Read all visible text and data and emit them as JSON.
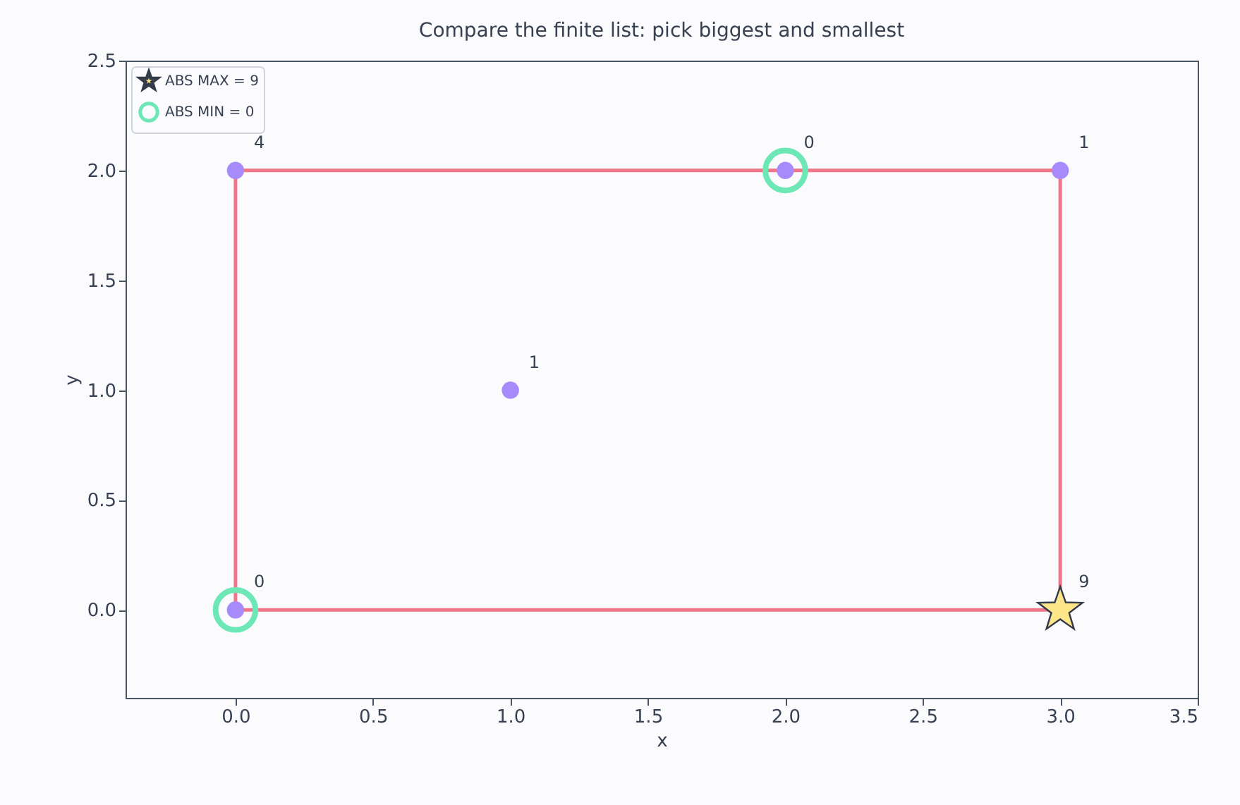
{
  "chart_data": {
    "type": "scatter",
    "title": "Compare the finite list: pick biggest and smallest",
    "xlabel": "x",
    "ylabel": "y",
    "xlim": [
      -0.4,
      3.5
    ],
    "xticks": [
      {
        "value": 0,
        "label": "0.0"
      },
      {
        "value": 0.5,
        "label": "0.5"
      },
      {
        "value": 1,
        "label": "1.0"
      },
      {
        "value": 1.5,
        "label": "1.5"
      },
      {
        "value": 2,
        "label": "2.0"
      },
      {
        "value": 2.5,
        "label": "2.5"
      },
      {
        "value": 3,
        "label": "3.0"
      },
      {
        "value": 3.5,
        "label": "3.5"
      }
    ],
    "ylim": [
      -0.4,
      2.5
    ],
    "yticks": [
      {
        "value": 0,
        "label": "0.0"
      },
      {
        "value": 0.5,
        "label": "0.5"
      },
      {
        "value": 1,
        "label": "1.0"
      },
      {
        "value": 1.5,
        "label": "1.5"
      },
      {
        "value": 2,
        "label": "2.0"
      },
      {
        "value": 2.5,
        "label": "2.5"
      }
    ],
    "grid": false,
    "legend": "top left",
    "annotations": [
      {
        "text": "0",
        "x": 0,
        "y": 0
      },
      {
        "text": "4",
        "x": 0,
        "y": 2
      },
      {
        "text": "1",
        "x": 1,
        "y": 1
      },
      {
        "text": "0",
        "x": 2,
        "y": 2
      },
      {
        "text": "1",
        "x": 3,
        "y": 2
      },
      {
        "text": "9",
        "x": 3,
        "y": 0
      }
    ],
    "series": [
      {
        "type": "line",
        "color": "#f07588",
        "marker": "none",
        "x": [
          0,
          0,
          3,
          3
        ],
        "values": [
          0,
          2,
          2,
          0
        ]
      },
      {
        "type": "line",
        "color": "#f07588",
        "marker": "none",
        "x": [
          0,
          3
        ],
        "values": [
          0,
          0
        ]
      },
      {
        "color": "#a78bfa",
        "marker": "circle",
        "x": [
          0,
          0,
          1,
          2,
          3
        ],
        "values": [
          0,
          2,
          1,
          2,
          2
        ]
      },
      {
        "name": "ABS MAX = 9",
        "color": "#fde68a",
        "marker": "star",
        "x": [
          3
        ],
        "values": [
          0
        ]
      },
      {
        "name": "ABS MIN = 0",
        "color": "#6ee7b7",
        "marker": "circle",
        "x": [
          0,
          2
        ],
        "values": [
          0,
          2
        ]
      }
    ]
  }
}
